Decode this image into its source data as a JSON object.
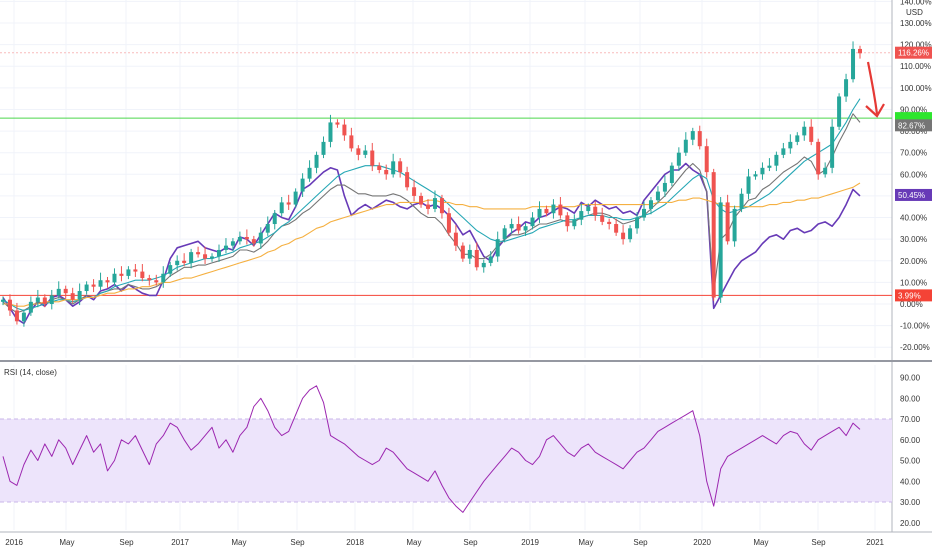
{
  "chart_data": [
    {
      "type": "candlestick",
      "axis_unit": "USD",
      "y_ticks": [
        "-20.00%",
        "-10.00%",
        "0.00%",
        "10.00%",
        "20.00%",
        "30.00%",
        "40.00%",
        "50.00%",
        "60.00%",
        "70.00%",
        "80.00%",
        "90.00%",
        "100.00%",
        "110.00%",
        "120.00%",
        "130.00%",
        "140.00%"
      ],
      "ylim": [
        -24,
        140
      ],
      "x_labels": [
        "2016",
        "May",
        "Sep",
        "2017",
        "May",
        "Sep",
        "2018",
        "May",
        "Sep",
        "2019",
        "May",
        "Sep",
        "2020",
        "May",
        "Sep",
        "2021"
      ],
      "series": [
        {
          "kind": "candles",
          "up_color": "#26a69a",
          "down_color": "#ef5350",
          "values": [
            2,
            -3,
            -8,
            -4,
            1,
            3,
            0,
            4,
            7,
            5,
            2,
            6,
            9,
            8,
            11,
            10,
            14,
            13,
            16,
            15,
            12,
            11,
            10,
            14,
            18,
            20,
            19,
            24,
            23,
            21,
            22,
            25,
            27,
            29,
            31,
            30,
            28,
            33,
            37,
            42,
            47,
            46,
            52,
            58,
            63,
            69,
            75,
            84,
            83,
            78,
            72,
            69,
            71,
            64,
            62,
            60,
            66,
            61,
            54,
            50,
            46,
            44,
            49,
            42,
            33,
            27,
            21,
            25,
            17,
            19,
            22,
            30,
            35,
            37,
            34,
            36,
            40,
            44,
            42,
            46,
            41,
            36,
            39,
            43,
            45,
            41,
            38,
            37,
            33,
            30,
            35,
            40,
            44,
            48,
            52,
            56,
            64,
            70,
            76,
            80,
            73,
            61,
            3,
            47,
            29,
            44,
            51,
            59,
            60,
            63,
            64,
            69,
            72,
            75,
            78,
            82,
            75,
            60,
            63,
            82,
            96,
            104,
            118,
            116
          ]
        },
        {
          "kind": "line",
          "color": "#673ab7",
          "values": [
            3,
            -2,
            -7,
            -9,
            -3,
            1,
            -1,
            3,
            4,
            2,
            -1,
            1,
            4,
            2,
            6,
            7,
            9,
            6,
            9,
            7,
            5,
            4,
            4,
            11,
            21,
            26,
            27,
            28,
            29,
            26,
            25,
            24,
            26,
            25,
            31,
            30,
            27,
            32,
            37,
            42,
            40,
            39,
            45,
            53,
            55,
            58,
            61,
            63,
            62,
            50,
            41,
            44,
            46,
            44,
            46,
            48,
            47,
            45,
            44,
            46,
            47,
            45,
            46,
            44,
            41,
            37,
            32,
            34,
            28,
            22,
            20,
            26,
            30,
            33,
            35,
            38,
            37,
            40,
            41,
            43,
            45,
            44,
            42,
            47,
            45,
            48,
            46,
            44,
            45,
            42,
            43,
            41,
            48,
            52,
            56,
            60,
            62,
            62,
            65,
            62,
            60,
            52,
            -2,
            4,
            10,
            16,
            20,
            22,
            24,
            28,
            31,
            32,
            30,
            34,
            35,
            33,
            34,
            37,
            38,
            36,
            40,
            46,
            53,
            50
          ]
        },
        {
          "kind": "line",
          "color": "#757575",
          "values": [
            1,
            -2,
            -4,
            -3,
            -1,
            1,
            0,
            2,
            3,
            2,
            0,
            2,
            4,
            3,
            5,
            6,
            7,
            7,
            9,
            8,
            7,
            7,
            8,
            10,
            13,
            15,
            17,
            17,
            18,
            18,
            19,
            20,
            21,
            22,
            25,
            25,
            24,
            26,
            29,
            33,
            36,
            37,
            39,
            42,
            44,
            47,
            50,
            53,
            55,
            55,
            53,
            51,
            51,
            50,
            50,
            50,
            51,
            50,
            48,
            45,
            42,
            40,
            40,
            37,
            32,
            28,
            23,
            23,
            21,
            21,
            23,
            27,
            30,
            32,
            32,
            33,
            35,
            37,
            37,
            38,
            39,
            38,
            38,
            40,
            41,
            42,
            42,
            41,
            39,
            37,
            38,
            39,
            41,
            44,
            47,
            50,
            54,
            58,
            62,
            65,
            62,
            52,
            5,
            30,
            33,
            40,
            44,
            48,
            49,
            53,
            55,
            58,
            61,
            63,
            65,
            68,
            66,
            60,
            62,
            68,
            75,
            81,
            88,
            84
          ]
        },
        {
          "kind": "line",
          "color": "#26a7b5",
          "values": [
            2,
            0,
            -2,
            -3,
            -2,
            -1,
            0,
            1,
            2,
            2,
            1,
            2,
            3,
            3,
            5,
            6,
            8,
            9,
            10,
            11,
            11,
            11,
            12,
            13,
            15,
            17,
            18,
            19,
            20,
            21,
            21,
            22,
            23,
            24,
            26,
            27,
            28,
            29,
            31,
            33,
            36,
            38,
            41,
            44,
            47,
            50,
            53,
            56,
            59,
            61,
            62,
            63,
            64,
            64,
            64,
            63,
            62,
            61,
            59,
            57,
            55,
            53,
            51,
            49,
            46,
            43,
            40,
            37,
            34,
            32,
            30,
            29,
            29,
            30,
            31,
            32,
            33,
            35,
            36,
            37,
            38,
            39,
            39,
            40,
            41,
            41,
            41,
            40,
            40,
            39,
            39,
            40,
            41,
            42,
            44,
            46,
            49,
            52,
            55,
            58,
            60,
            58,
            48,
            44,
            42,
            43,
            44,
            45,
            47,
            49,
            51,
            54,
            57,
            60,
            63,
            66,
            68,
            70,
            72,
            74,
            79,
            84,
            90,
            95
          ]
        },
        {
          "kind": "line",
          "color": "#f5b041",
          "values": [
            0,
            0,
            -1,
            -1,
            0,
            0,
            1,
            1,
            1,
            2,
            2,
            2,
            3,
            3,
            4,
            5,
            5,
            6,
            7,
            7,
            8,
            8,
            9,
            10,
            10,
            11,
            12,
            12,
            13,
            14,
            15,
            16,
            17,
            18,
            19,
            20,
            21,
            22,
            24,
            25,
            27,
            28,
            30,
            31,
            33,
            35,
            36,
            38,
            39,
            40,
            41,
            42,
            43,
            44,
            45,
            46,
            46,
            47,
            47,
            47,
            47,
            48,
            48,
            47,
            47,
            46,
            46,
            45,
            45,
            44,
            44,
            44,
            44,
            44,
            44,
            44,
            45,
            45,
            45,
            45,
            45,
            45,
            45,
            46,
            46,
            46,
            46,
            46,
            46,
            46,
            46,
            46,
            46,
            46,
            47,
            47,
            47,
            48,
            48,
            49,
            49,
            48,
            47,
            46,
            45,
            45,
            45,
            45,
            45,
            45,
            46,
            46,
            47,
            47,
            48,
            48,
            49,
            49,
            50,
            51,
            52,
            53,
            54,
            56
          ]
        }
      ],
      "horizontal_lines": [
        {
          "value": 86,
          "color": "#4cd64c",
          "tag": "",
          "tag_color": "#2ee62e"
        },
        {
          "value": 3.99,
          "color": "#f44336",
          "tag": "3.99%",
          "tag_color": "#f44336"
        },
        {
          "value": 116.26,
          "color": "#f8bbbb",
          "tag": "116.26%",
          "tag_color": "#ef5350",
          "dotted": true
        }
      ],
      "price_tags": [
        {
          "value": 82.67,
          "tag": "82.67%",
          "color": "#757575"
        },
        {
          "value": 50.45,
          "tag": "50.45%",
          "color": "#673ab7"
        }
      ],
      "annotation_arrow_color": "#e53935"
    },
    {
      "type": "line",
      "title": "RSI (14, close)",
      "y_ticks": [
        "20.00",
        "30.00",
        "40.00",
        "50.00",
        "60.00",
        "70.00",
        "80.00",
        "90.00"
      ],
      "ylim": [
        16,
        94
      ],
      "band": [
        30,
        70
      ],
      "band_color": "#ede4fb",
      "series": [
        {
          "name": "RSI (14, close)",
          "color": "#9c27b0",
          "values": [
            52,
            40,
            38,
            48,
            55,
            50,
            58,
            52,
            60,
            56,
            48,
            55,
            62,
            54,
            58,
            45,
            50,
            60,
            58,
            62,
            55,
            48,
            58,
            62,
            68,
            66,
            60,
            55,
            58,
            62,
            66,
            56,
            60,
            54,
            62,
            66,
            76,
            80,
            74,
            66,
            62,
            64,
            72,
            80,
            84,
            86,
            78,
            62,
            60,
            58,
            55,
            52,
            50,
            48,
            50,
            56,
            54,
            50,
            46,
            44,
            42,
            40,
            45,
            38,
            32,
            28,
            25,
            30,
            35,
            40,
            44,
            48,
            52,
            56,
            54,
            50,
            48,
            52,
            60,
            62,
            58,
            54,
            52,
            56,
            58,
            54,
            52,
            50,
            48,
            46,
            50,
            54,
            56,
            60,
            64,
            66,
            68,
            70,
            72,
            74,
            62,
            40,
            28,
            46,
            52,
            54,
            56,
            58,
            60,
            62,
            60,
            58,
            62,
            64,
            63,
            58,
            55,
            60,
            62,
            64,
            66,
            62,
            68,
            65
          ]
        }
      ]
    }
  ],
  "icons": {
    "arrow": "red-down-arrow-icon"
  }
}
